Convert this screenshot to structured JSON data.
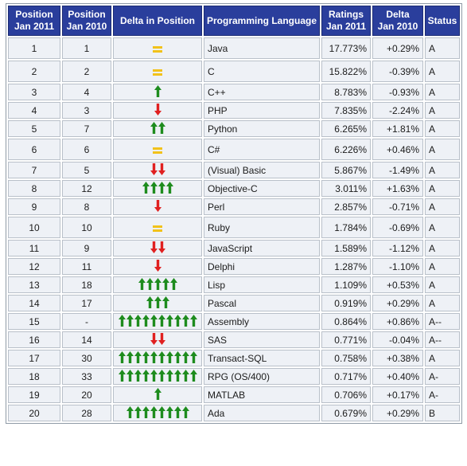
{
  "headers": {
    "pos_2011": [
      "Position",
      "Jan 2011"
    ],
    "pos_2010": [
      "Position",
      "Jan 2010"
    ],
    "delta_pos": "Delta in Position",
    "language": "Programming Language",
    "ratings": [
      "Ratings",
      "Jan 2011"
    ],
    "delta": [
      "Delta",
      "Jan 2010"
    ],
    "status": "Status"
  },
  "colors": {
    "header_bg": "#2a3e9c",
    "up_arrow": "#1e8c1e",
    "down_arrow": "#e02020",
    "same": "#f2c21a",
    "link": "#1f3c9a"
  },
  "rows": [
    {
      "pos2011": "1",
      "pos2010": "1",
      "change": "same",
      "count": 1,
      "language": "Java",
      "rating": "17.773%",
      "delta": "+0.29%",
      "status": "A"
    },
    {
      "pos2011": "2",
      "pos2010": "2",
      "change": "same",
      "count": 1,
      "language": "C",
      "rating": "15.822%",
      "delta": "-0.39%",
      "status": "A"
    },
    {
      "pos2011": "3",
      "pos2010": "4",
      "change": "up",
      "count": 1,
      "language": "C++",
      "rating": "8.783%",
      "delta": "-0.93%",
      "status": "A"
    },
    {
      "pos2011": "4",
      "pos2010": "3",
      "change": "down",
      "count": 1,
      "language": "PHP",
      "rating": "7.835%",
      "delta": "-2.24%",
      "status": "A"
    },
    {
      "pos2011": "5",
      "pos2010": "7",
      "change": "up",
      "count": 2,
      "language": "Python",
      "rating": "6.265%",
      "delta": "+1.81%",
      "status": "A"
    },
    {
      "pos2011": "6",
      "pos2010": "6",
      "change": "same",
      "count": 1,
      "language": "C#",
      "rating": "6.226%",
      "delta": "+0.46%",
      "status": "A"
    },
    {
      "pos2011": "7",
      "pos2010": "5",
      "change": "down",
      "count": 2,
      "language": "(Visual) Basic",
      "rating": "5.867%",
      "delta": "-1.49%",
      "status": "A"
    },
    {
      "pos2011": "8",
      "pos2010": "12",
      "change": "up",
      "count": 4,
      "language": "Objective-C",
      "rating": "3.011%",
      "delta": "+1.63%",
      "status": "A"
    },
    {
      "pos2011": "9",
      "pos2010": "8",
      "change": "down",
      "count": 1,
      "language": "Perl",
      "rating": "2.857%",
      "delta": "-0.71%",
      "status": "A"
    },
    {
      "pos2011": "10",
      "pos2010": "10",
      "change": "same",
      "count": 1,
      "language": "Ruby",
      "rating": "1.784%",
      "delta": "-0.69%",
      "status": "A"
    },
    {
      "pos2011": "11",
      "pos2010": "9",
      "change": "down",
      "count": 2,
      "language": "JavaScript",
      "rating": "1.589%",
      "delta": "-1.12%",
      "status": "A"
    },
    {
      "pos2011": "12",
      "pos2010": "11",
      "change": "down",
      "count": 1,
      "language": "Delphi",
      "rating": "1.287%",
      "delta": "-1.10%",
      "status": "A"
    },
    {
      "pos2011": "13",
      "pos2010": "18",
      "change": "up",
      "count": 5,
      "language": "Lisp",
      "rating": "1.109%",
      "delta": "+0.53%",
      "status": "A"
    },
    {
      "pos2011": "14",
      "pos2010": "17",
      "change": "up",
      "count": 3,
      "language": "Pascal",
      "rating": "0.919%",
      "delta": "+0.29%",
      "status": "A"
    },
    {
      "pos2011": "15",
      "pos2010": "-",
      "change": "up",
      "count": 10,
      "language": "Assembly",
      "rating": "0.864%",
      "delta": "+0.86%",
      "status": "A--"
    },
    {
      "pos2011": "16",
      "pos2010": "14",
      "change": "down",
      "count": 2,
      "language": "SAS",
      "rating": "0.771%",
      "delta": "-0.04%",
      "status": "A--"
    },
    {
      "pos2011": "17",
      "pos2010": "30",
      "change": "up",
      "count": 10,
      "language": "Transact-SQL",
      "rating": "0.758%",
      "delta": "+0.38%",
      "status": "A"
    },
    {
      "pos2011": "18",
      "pos2010": "33",
      "change": "up",
      "count": 10,
      "language": "RPG (OS/400)",
      "rating": "0.717%",
      "delta": "+0.40%",
      "status": "A-"
    },
    {
      "pos2011": "19",
      "pos2010": "20",
      "change": "up",
      "count": 1,
      "language": "MATLAB",
      "rating": "0.706%",
      "delta": "+0.17%",
      "status": "A-"
    },
    {
      "pos2011": "20",
      "pos2010": "28",
      "change": "up",
      "count": 8,
      "language": "Ada",
      "rating": "0.679%",
      "delta": "+0.29%",
      "status": "B"
    }
  ]
}
